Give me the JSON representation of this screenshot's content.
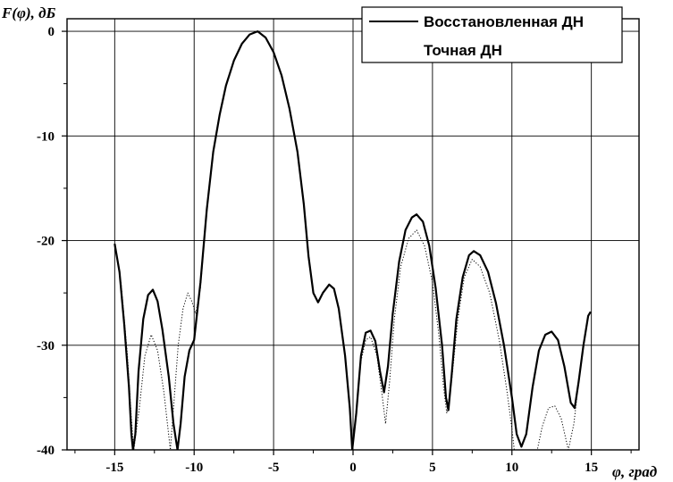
{
  "chart_data": {
    "type": "line",
    "ylabel": "F(φ), дБ",
    "xlabel": "φ, град",
    "xlim": [
      -18,
      18
    ],
    "ylim": [
      -40,
      1.2
    ],
    "xticks": [
      -15,
      -10,
      -5,
      0,
      5,
      10,
      15
    ],
    "xtick_labels": [
      "-15",
      "-10",
      "-5",
      "0",
      "5",
      "10",
      "15"
    ],
    "yticks": [
      0,
      -10,
      -20,
      -30,
      -40
    ],
    "ytick_labels": [
      "0",
      "-10",
      "-20",
      "-30",
      "-40"
    ],
    "grid": true,
    "legend_position": "top-right",
    "series": [
      {
        "name": "Восстановленная ДН",
        "style": "solid",
        "color": "#000000",
        "points": [
          [
            -15.0,
            -20.3
          ],
          [
            -14.7,
            -23.0
          ],
          [
            -14.4,
            -28.0
          ],
          [
            -14.1,
            -34.0
          ],
          [
            -13.95,
            -38.5
          ],
          [
            -13.85,
            -40.0
          ],
          [
            -13.7,
            -38.5
          ],
          [
            -13.5,
            -32.5
          ],
          [
            -13.2,
            -27.5
          ],
          [
            -12.9,
            -25.2
          ],
          [
            -12.6,
            -24.7
          ],
          [
            -12.3,
            -25.8
          ],
          [
            -12.0,
            -28.5
          ],
          [
            -11.6,
            -33.0
          ],
          [
            -11.3,
            -37.5
          ],
          [
            -11.05,
            -40.0
          ],
          [
            -10.85,
            -37.5
          ],
          [
            -10.6,
            -33.0
          ],
          [
            -10.3,
            -30.5
          ],
          [
            -10.0,
            -29.5
          ],
          [
            -9.6,
            -24.0
          ],
          [
            -9.2,
            -17.0
          ],
          [
            -8.8,
            -11.5
          ],
          [
            -8.4,
            -8.0
          ],
          [
            -8.0,
            -5.2
          ],
          [
            -7.5,
            -2.8
          ],
          [
            -7.0,
            -1.2
          ],
          [
            -6.5,
            -0.3
          ],
          [
            -6.0,
            0.0
          ],
          [
            -5.5,
            -0.6
          ],
          [
            -5.0,
            -2.0
          ],
          [
            -4.5,
            -4.2
          ],
          [
            -4.0,
            -7.4
          ],
          [
            -3.5,
            -11.5
          ],
          [
            -3.1,
            -16.5
          ],
          [
            -2.8,
            -21.5
          ],
          [
            -2.5,
            -25.0
          ],
          [
            -2.2,
            -25.9
          ],
          [
            -1.9,
            -25.0
          ],
          [
            -1.5,
            -24.2
          ],
          [
            -1.2,
            -24.6
          ],
          [
            -0.9,
            -26.5
          ],
          [
            -0.5,
            -31.0
          ],
          [
            -0.2,
            -36.0
          ],
          [
            -0.05,
            -40.0
          ],
          [
            0.2,
            -36.5
          ],
          [
            0.5,
            -31.0
          ],
          [
            0.8,
            -28.8
          ],
          [
            1.1,
            -28.6
          ],
          [
            1.4,
            -29.6
          ],
          [
            1.7,
            -32.5
          ],
          [
            1.95,
            -34.5
          ],
          [
            2.2,
            -32.0
          ],
          [
            2.5,
            -27.0
          ],
          [
            2.9,
            -22.0
          ],
          [
            3.3,
            -19.0
          ],
          [
            3.7,
            -17.8
          ],
          [
            4.0,
            -17.5
          ],
          [
            4.4,
            -18.2
          ],
          [
            4.8,
            -20.5
          ],
          [
            5.2,
            -24.5
          ],
          [
            5.6,
            -30.0
          ],
          [
            5.85,
            -35.0
          ],
          [
            6.0,
            -36.2
          ],
          [
            6.2,
            -33.0
          ],
          [
            6.5,
            -27.5
          ],
          [
            6.9,
            -23.5
          ],
          [
            7.3,
            -21.4
          ],
          [
            7.6,
            -21.0
          ],
          [
            8.0,
            -21.4
          ],
          [
            8.5,
            -23.0
          ],
          [
            9.0,
            -26.0
          ],
          [
            9.5,
            -30.0
          ],
          [
            10.0,
            -35.0
          ],
          [
            10.3,
            -38.5
          ],
          [
            10.6,
            -39.7
          ],
          [
            10.9,
            -38.5
          ],
          [
            11.3,
            -34.0
          ],
          [
            11.7,
            -30.5
          ],
          [
            12.1,
            -29.0
          ],
          [
            12.5,
            -28.7
          ],
          [
            12.9,
            -29.5
          ],
          [
            13.3,
            -32.0
          ],
          [
            13.7,
            -35.5
          ],
          [
            13.95,
            -36.0
          ],
          [
            14.2,
            -33.5
          ],
          [
            14.5,
            -30.0
          ],
          [
            14.8,
            -27.2
          ],
          [
            14.95,
            -26.8
          ]
        ]
      },
      {
        "name": "Точная ДН",
        "style": "dotted",
        "color": "#000000",
        "points": [
          [
            -15.0,
            -20.5
          ],
          [
            -14.6,
            -24.0
          ],
          [
            -14.2,
            -31.0
          ],
          [
            -13.95,
            -37.0
          ],
          [
            -13.8,
            -40.0
          ],
          [
            -13.45,
            -36.0
          ],
          [
            -13.1,
            -31.0
          ],
          [
            -12.7,
            -29.0
          ],
          [
            -12.3,
            -30.5
          ],
          [
            -11.9,
            -34.5
          ],
          [
            -11.5,
            -40.0
          ],
          [
            -11.3,
            -36.0
          ],
          [
            -11.0,
            -30.0
          ],
          [
            -10.7,
            -26.5
          ],
          [
            -10.4,
            -25.0
          ],
          [
            -10.15,
            -25.8
          ],
          [
            -9.9,
            -27.0
          ],
          [
            -9.6,
            -24.5
          ],
          [
            -9.2,
            -17.0
          ],
          [
            -8.8,
            -11.5
          ],
          [
            -8.4,
            -8.0
          ],
          [
            -8.0,
            -5.2
          ],
          [
            -7.5,
            -2.8
          ],
          [
            -7.0,
            -1.2
          ],
          [
            -6.5,
            -0.3
          ],
          [
            -6.0,
            0.0
          ],
          [
            -5.5,
            -0.6
          ],
          [
            -5.0,
            -2.0
          ],
          [
            -4.5,
            -4.2
          ],
          [
            -4.0,
            -7.4
          ],
          [
            -3.5,
            -11.5
          ],
          [
            -3.1,
            -16.5
          ],
          [
            -2.8,
            -21.5
          ],
          [
            -2.5,
            -25.0
          ],
          [
            -2.2,
            -25.9
          ],
          [
            -1.9,
            -25.0
          ],
          [
            -1.5,
            -24.2
          ],
          [
            -1.2,
            -24.6
          ],
          [
            -0.9,
            -26.5
          ],
          [
            -0.5,
            -31.0
          ],
          [
            -0.2,
            -36.0
          ],
          [
            -0.05,
            -40.0
          ],
          [
            0.2,
            -36.5
          ],
          [
            0.5,
            -31.5
          ],
          [
            0.8,
            -29.5
          ],
          [
            1.1,
            -29.2
          ],
          [
            1.5,
            -31.0
          ],
          [
            1.85,
            -35.0
          ],
          [
            2.05,
            -37.5
          ],
          [
            2.3,
            -33.5
          ],
          [
            2.6,
            -27.5
          ],
          [
            3.0,
            -22.5
          ],
          [
            3.5,
            -19.8
          ],
          [
            4.0,
            -19.0
          ],
          [
            4.5,
            -20.5
          ],
          [
            5.0,
            -24.0
          ],
          [
            5.4,
            -29.0
          ],
          [
            5.7,
            -34.0
          ],
          [
            5.9,
            -36.5
          ],
          [
            6.2,
            -33.5
          ],
          [
            6.6,
            -27.5
          ],
          [
            7.0,
            -23.5
          ],
          [
            7.5,
            -21.8
          ],
          [
            8.0,
            -22.5
          ],
          [
            8.6,
            -25.0
          ],
          [
            9.2,
            -29.5
          ],
          [
            9.7,
            -34.5
          ],
          [
            10.0,
            -38.0
          ],
          [
            10.15,
            -40.0
          ],
          [
            11.6,
            -40.0
          ],
          [
            11.9,
            -37.8
          ],
          [
            12.3,
            -36.0
          ],
          [
            12.7,
            -35.8
          ],
          [
            13.1,
            -37.0
          ],
          [
            13.4,
            -39.0
          ],
          [
            13.55,
            -40.0
          ],
          [
            13.9,
            -37.5
          ],
          [
            14.2,
            -33.5
          ],
          [
            14.5,
            -30.0
          ],
          [
            14.8,
            -27.2
          ],
          [
            14.95,
            -26.8
          ]
        ]
      }
    ]
  }
}
